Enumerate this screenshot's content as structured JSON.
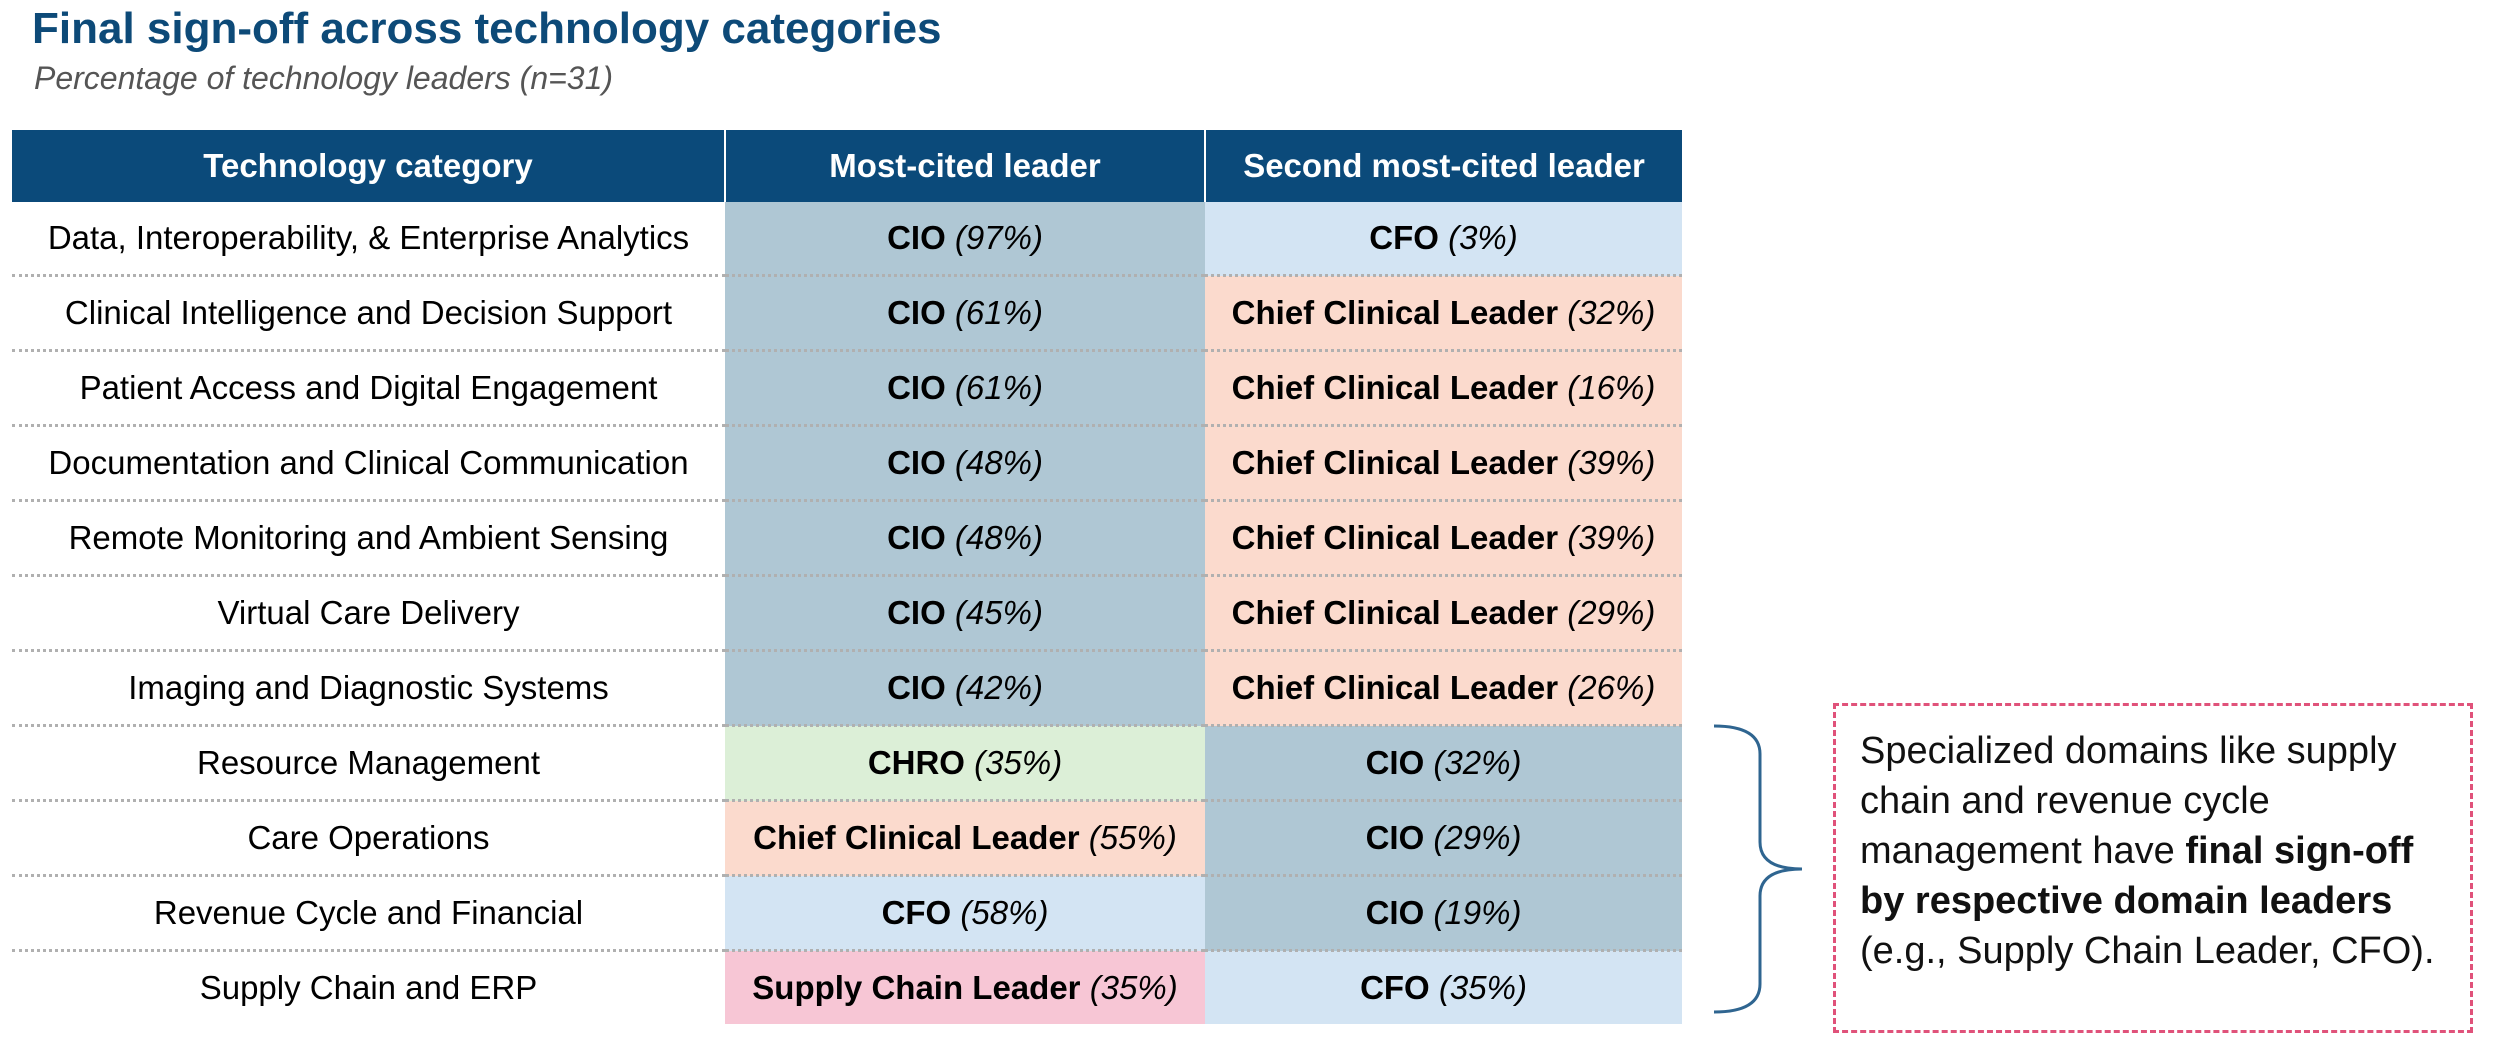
{
  "title": "Final sign-off across technology categories",
  "subtitle": "Percentage of technology leaders (n=31)",
  "colors": {
    "header_bg": "#0b4a7a",
    "CIO": "#afc7d4",
    "CFO": "#d3e4f3",
    "Chief Clinical Leader": "#fbdacd",
    "CHRO": "#dcefd7",
    "Supply Chain Leader": "#f7c6d5"
  },
  "chart_data": {
    "type": "table",
    "title": "Final sign-off across technology categories",
    "subtitle": "Percentage of technology leaders (n=31)",
    "columns": [
      "Technology category",
      "Most-cited leader",
      "Second most-cited leader"
    ],
    "rows": [
      {
        "category": "Data, Interoperability, & Enterprise Analytics",
        "first": {
          "leader": "CIO",
          "pct": "(97%)"
        },
        "second": {
          "leader": "CFO",
          "pct": "(3%)"
        }
      },
      {
        "category": "Clinical Intelligence and Decision Support",
        "first": {
          "leader": "CIO",
          "pct": "(61%)"
        },
        "second": {
          "leader": "Chief Clinical Leader",
          "pct": "(32%)"
        }
      },
      {
        "category": "Patient Access and Digital Engagement",
        "first": {
          "leader": "CIO",
          "pct": "(61%)"
        },
        "second": {
          "leader": "Chief Clinical Leader",
          "pct": "(16%)"
        }
      },
      {
        "category": "Documentation and Clinical Communication",
        "first": {
          "leader": "CIO",
          "pct": "(48%)"
        },
        "second": {
          "leader": "Chief Clinical Leader",
          "pct": "(39%)"
        }
      },
      {
        "category": "Remote Monitoring and Ambient Sensing",
        "first": {
          "leader": "CIO",
          "pct": "(48%)"
        },
        "second": {
          "leader": "Chief Clinical Leader",
          "pct": "(39%)"
        }
      },
      {
        "category": "Virtual Care Delivery",
        "first": {
          "leader": "CIO",
          "pct": "(45%)"
        },
        "second": {
          "leader": "Chief Clinical Leader",
          "pct": "(29%)"
        }
      },
      {
        "category": "Imaging and Diagnostic Systems",
        "first": {
          "leader": "CIO",
          "pct": "(42%)"
        },
        "second": {
          "leader": "Chief Clinical Leader",
          "pct": "(26%)"
        }
      },
      {
        "category": "Resource Management",
        "first": {
          "leader": "CHRO",
          "pct": "(35%)"
        },
        "second": {
          "leader": "CIO",
          "pct": "(32%)"
        }
      },
      {
        "category": "Care Operations",
        "first": {
          "leader": "Chief Clinical Leader",
          "pct": "(55%)"
        },
        "second": {
          "leader": "CIO",
          "pct": "(29%)"
        }
      },
      {
        "category": "Revenue Cycle and Financial",
        "first": {
          "leader": "CFO",
          "pct": "(58%)"
        },
        "second": {
          "leader": "CIO",
          "pct": "(19%)"
        }
      },
      {
        "category": "Supply Chain and ERP",
        "first": {
          "leader": "Supply Chain Leader",
          "pct": "(35%)"
        },
        "second": {
          "leader": "CFO",
          "pct": "(35%)"
        }
      }
    ]
  },
  "callout": {
    "text_1": "Specialized domains like supply chain and revenue cycle management have ",
    "bold": "final sign-off by respective domain leaders",
    "text_2": " (e.g., Supply Chain Leader, CFO)."
  }
}
